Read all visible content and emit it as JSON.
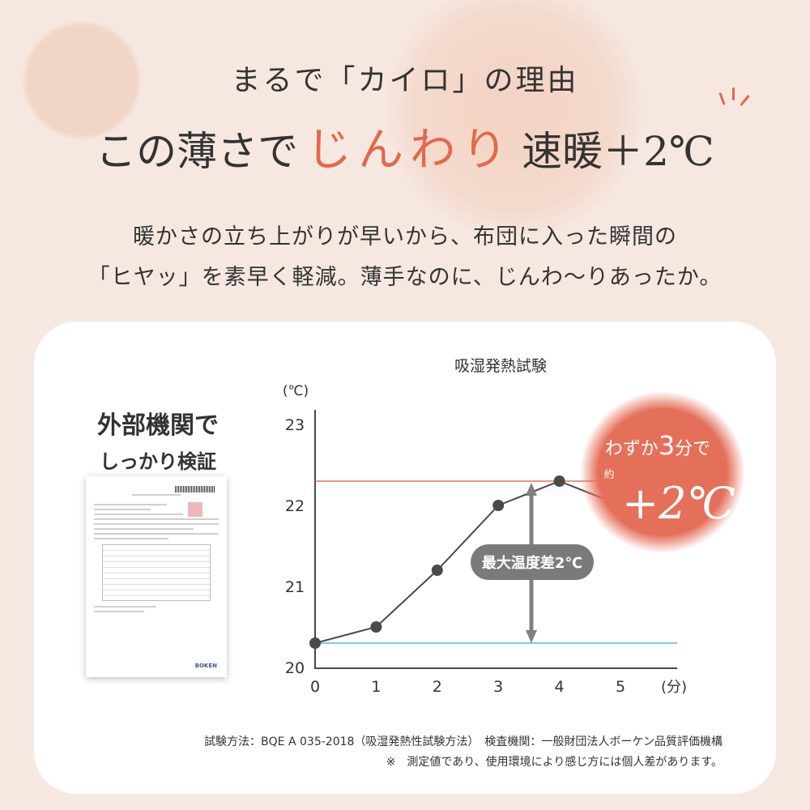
{
  "heading": {
    "line1": "まるで「カイロ」の理由",
    "line2_pre": "この薄さで",
    "line2_accent": "じんわり",
    "line2_post": "速暖＋2℃"
  },
  "lead": {
    "line1": "暖かさの立ち上がりが早いから、布団に入った瞬間の",
    "line2": "「ヒヤッ」を素早く軽減。薄手なのに、じんわ〜りあったか。"
  },
  "side": {
    "line1": "外部機関で",
    "line2": "しっかり検証",
    "doc_logo": "BOKEN"
  },
  "badge": {
    "line1_pre": "わずか",
    "line1_num": "3",
    "line1_post": "分で",
    "prefix": "約",
    "value": "+2℃"
  },
  "callout": "最大温度差2℃",
  "notes": {
    "method": "試験方法：BQE A 035-2018（吸湿発熱性試験方法）　検査機関：一般財団法人ボーケン品質評価機構",
    "disclaimer": "※　測定値であり、使用環境により感じ方には個人差があります。"
  },
  "colors": {
    "accent": "#e2694d",
    "line": "#4a4a4a",
    "max_line": "#e8715a",
    "min_line": "#5ab4e8",
    "arrow": "#808080"
  },
  "chart_data": {
    "type": "line",
    "title": "吸湿発熱試験",
    "ylabel": "(℃)",
    "xlabel": "(分)",
    "x": [
      0,
      1,
      2,
      3,
      4,
      5
    ],
    "y": [
      20.3,
      20.5,
      21.2,
      22.0,
      22.3,
      22.0
    ],
    "xlim": [
      0,
      5
    ],
    "ylim": [
      20,
      23
    ],
    "xticks": [
      "0",
      "1",
      "2",
      "3",
      "4",
      "5"
    ],
    "yticks": [
      "20",
      "21",
      "22",
      "23"
    ],
    "reference_lines": [
      {
        "y": 22.3,
        "color": "#e8715a"
      },
      {
        "y": 20.3,
        "color": "#5ab4e8"
      }
    ],
    "grid": false
  }
}
